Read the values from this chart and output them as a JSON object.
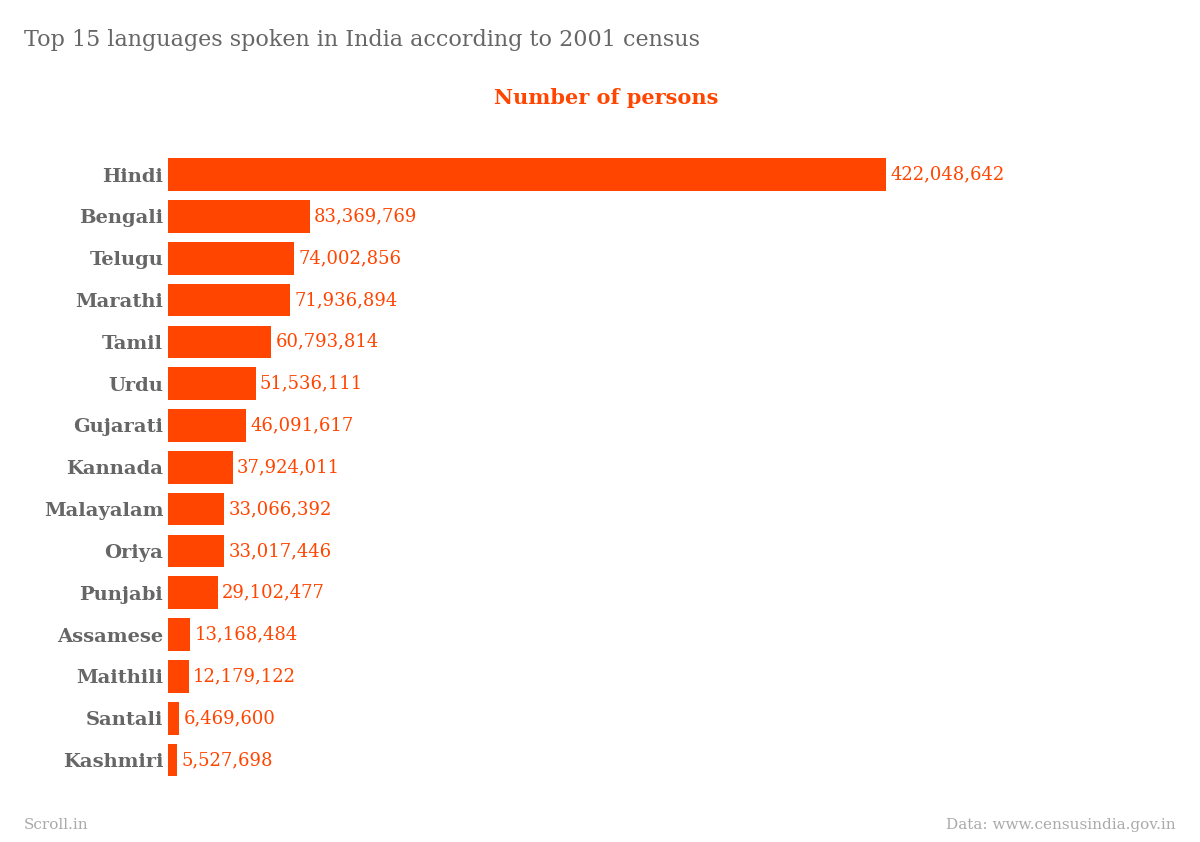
{
  "title": "Top 15 languages spoken in India according to 2001 census",
  "xlabel": "Number of persons",
  "languages": [
    "Hindi",
    "Bengali",
    "Telugu",
    "Marathi",
    "Tamil",
    "Urdu",
    "Gujarati",
    "Kannada",
    "Malayalam",
    "Oriya",
    "Punjabi",
    "Assamese",
    "Maithili",
    "Santali",
    "Kashmiri"
  ],
  "values": [
    422048642,
    83369769,
    74002856,
    71936894,
    60793814,
    51536111,
    46091617,
    37924011,
    33066392,
    33017446,
    29102477,
    13168484,
    12179122,
    6469600,
    5527698
  ],
  "bar_color": "#FF4500",
  "label_color": "#FF4500",
  "title_color": "#666666",
  "xlabel_color": "#FF4500",
  "footer_left": "Scroll.in",
  "footer_right": "Data: www.censusindia.gov.in",
  "footer_color": "#aaaaaa",
  "bg_color": "#ffffff",
  "title_fontsize": 16,
  "xlabel_fontsize": 15,
  "label_fontsize": 13,
  "ytick_fontsize": 14,
  "footer_fontsize": 11
}
